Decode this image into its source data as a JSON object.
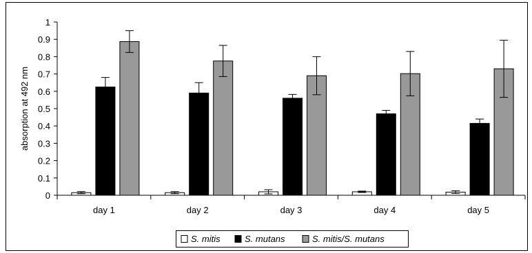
{
  "chart_data": {
    "type": "bar",
    "categories": [
      "day 1",
      "day 2",
      "day 3",
      "day 4",
      "day 5"
    ],
    "series": [
      {
        "name": "S. mitis",
        "values": [
          0.015,
          0.015,
          0.02,
          0.02,
          0.018
        ],
        "errors": [
          0.006,
          0.006,
          0.012,
          0.004,
          0.008
        ],
        "color": "#ffffff"
      },
      {
        "name": "S. mutans",
        "values": [
          0.625,
          0.59,
          0.56,
          0.47,
          0.415
        ],
        "errors": [
          0.055,
          0.06,
          0.022,
          0.02,
          0.025
        ],
        "color": "#000000"
      },
      {
        "name": "S. mitis/S. mutans",
        "values": [
          0.887,
          0.775,
          0.69,
          0.702,
          0.73
        ],
        "errors": [
          0.063,
          0.09,
          0.11,
          0.128,
          0.165
        ],
        "color": "#999999"
      }
    ],
    "title": "",
    "xlabel": "",
    "ylabel": "absorption at 492 nm",
    "ylim": [
      0,
      1
    ],
    "yticks": [
      "0",
      "0.1",
      "0.2",
      "0.3",
      "0.4",
      "0.5",
      "0.6",
      "0.7",
      "0.8",
      "0.9",
      "1"
    ],
    "grid": false,
    "legend_position": "bottom-center"
  }
}
